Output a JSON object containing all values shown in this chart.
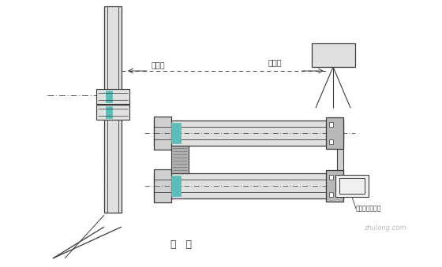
{
  "bg_color": "#ffffff",
  "line_color": "#3a3a3a",
  "teal_color": "#5bbcb8",
  "gray_fill": "#d0d0d0",
  "gray_fill2": "#e0e0e0",
  "gray_fill3": "#b8b8b8",
  "caption": "图   四",
  "label_gangchi": "钢钢尺",
  "label_shuipingyi": "水平仪",
  "label_paishi": "框式水平仪检查"
}
